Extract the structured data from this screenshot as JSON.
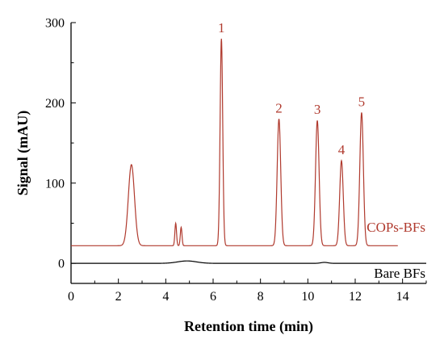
{
  "chart_data": {
    "type": "line",
    "xlabel": "Retention time (min)",
    "ylabel": "Signal (mAU)",
    "xlim": [
      0,
      15
    ],
    "ylim": [
      -25,
      300
    ],
    "x_ticks": [
      0,
      2,
      4,
      6,
      8,
      10,
      12,
      14
    ],
    "y_ticks": [
      0,
      100,
      200,
      300
    ],
    "grid": false,
    "series": [
      {
        "name": "COPs-BFs",
        "color": "#b03a2e",
        "baseline": 22,
        "peaks": [
          {
            "x": 2.55,
            "y": 123,
            "w": 0.13
          },
          {
            "x": 4.42,
            "y": 50,
            "w": 0.035
          },
          {
            "x": 4.65,
            "y": 45,
            "w": 0.035
          },
          {
            "x": 6.35,
            "y": 280,
            "w": 0.055
          },
          {
            "x": 8.78,
            "y": 180,
            "w": 0.075
          },
          {
            "x": 10.4,
            "y": 178,
            "w": 0.075
          },
          {
            "x": 11.42,
            "y": 128,
            "w": 0.075
          },
          {
            "x": 12.27,
            "y": 188,
            "w": 0.075
          }
        ],
        "x_range": [
          0,
          13.8
        ]
      },
      {
        "name": "Bare BFs",
        "color": "#000000",
        "baseline": 0,
        "peaks": [
          {
            "x": 4.9,
            "y": 3,
            "w": 0.4
          },
          {
            "x": 10.7,
            "y": 1.2,
            "w": 0.15
          }
        ],
        "x_range": [
          0,
          15
        ]
      }
    ],
    "peak_labels": [
      {
        "text": "1",
        "x": 6.35,
        "y": 280
      },
      {
        "text": "2",
        "x": 8.78,
        "y": 180
      },
      {
        "text": "3",
        "x": 10.4,
        "y": 178
      },
      {
        "text": "4",
        "x": 11.42,
        "y": 128
      },
      {
        "text": "5",
        "x": 12.27,
        "y": 188
      }
    ]
  }
}
